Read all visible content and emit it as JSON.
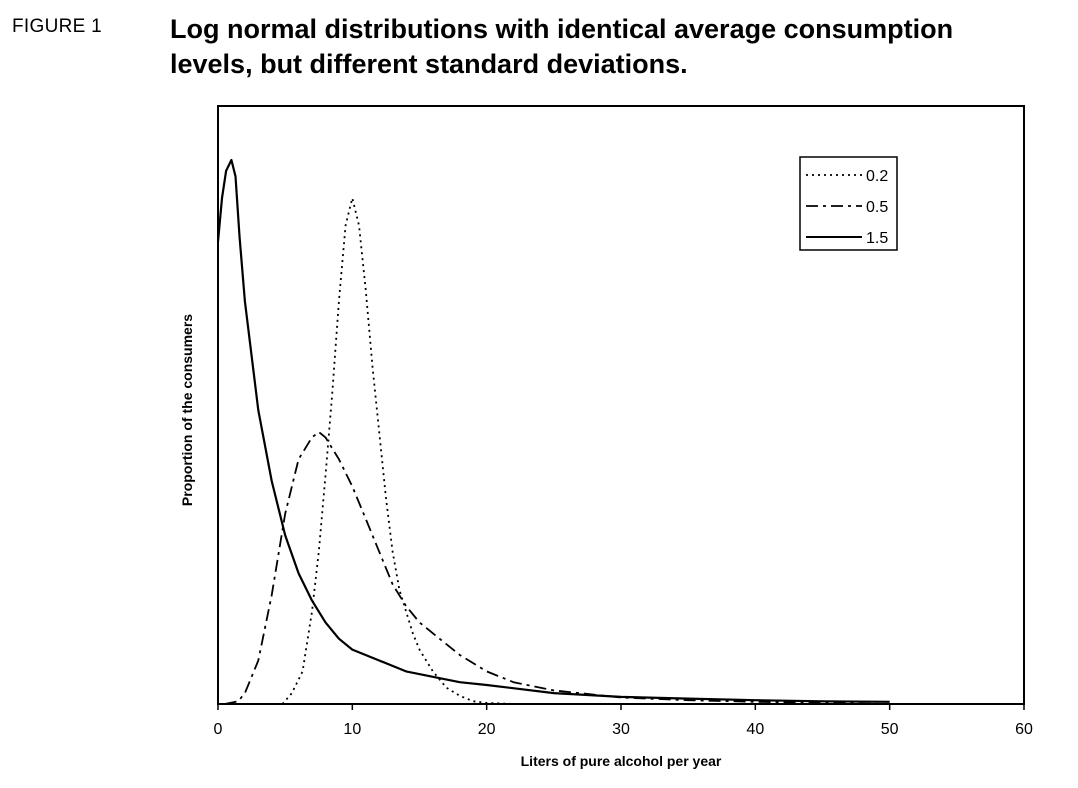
{
  "figure": {
    "label": "FIGURE 1",
    "title_line1": "Log normal distributions with identical average consumption",
    "title_line2": "levels, but different standard deviations."
  },
  "chart_data": {
    "type": "line",
    "xlabel": "Liters of pure alcohol per year",
    "ylabel": "Proportion of the consumers",
    "xlim": [
      0,
      60
    ],
    "ylim": [
      0,
      1
    ],
    "x_ticks": [
      "0",
      "10",
      "20",
      "30",
      "40",
      "50",
      "60"
    ],
    "legend_position": "top-right",
    "grid": false,
    "series": [
      {
        "name": "0.2",
        "style": "dotted",
        "points": [
          [
            4.8,
            0.0
          ],
          [
            5.5,
            0.02
          ],
          [
            6.3,
            0.06
          ],
          [
            7,
            0.17
          ],
          [
            7.5,
            0.28
          ],
          [
            8,
            0.42
          ],
          [
            8.5,
            0.57
          ],
          [
            9,
            0.74
          ],
          [
            9.5,
            0.88
          ],
          [
            10,
            0.93
          ],
          [
            10.5,
            0.88
          ],
          [
            11,
            0.76
          ],
          [
            11.5,
            0.62
          ],
          [
            12,
            0.5
          ],
          [
            12.5,
            0.38
          ],
          [
            13,
            0.28
          ],
          [
            13.5,
            0.21
          ],
          [
            14,
            0.17
          ],
          [
            14.5,
            0.13
          ],
          [
            15,
            0.1
          ],
          [
            16,
            0.06
          ],
          [
            17,
            0.03
          ],
          [
            18,
            0.015
          ],
          [
            19,
            0.005
          ],
          [
            20,
            0.002
          ],
          [
            22,
            0.0
          ]
        ]
      },
      {
        "name": "0.5",
        "style": "dashdot",
        "points": [
          [
            0.5,
            0.0
          ],
          [
            1.5,
            0.005
          ],
          [
            2,
            0.02
          ],
          [
            3,
            0.08
          ],
          [
            4,
            0.2
          ],
          [
            5,
            0.35
          ],
          [
            6,
            0.45
          ],
          [
            7,
            0.49
          ],
          [
            7.5,
            0.5
          ],
          [
            8,
            0.49
          ],
          [
            9,
            0.45
          ],
          [
            10,
            0.4
          ],
          [
            11,
            0.34
          ],
          [
            12,
            0.28
          ],
          [
            13,
            0.22
          ],
          [
            14,
            0.18
          ],
          [
            15,
            0.15
          ],
          [
            16,
            0.13
          ],
          [
            17,
            0.11
          ],
          [
            18,
            0.09
          ],
          [
            20,
            0.06
          ],
          [
            22,
            0.04
          ],
          [
            25,
            0.025
          ],
          [
            30,
            0.012
          ],
          [
            35,
            0.007
          ],
          [
            40,
            0.004
          ],
          [
            45,
            0.002
          ],
          [
            50,
            0.0
          ]
        ]
      },
      {
        "name": "1.5",
        "style": "solid",
        "points": [
          [
            0,
            0.85
          ],
          [
            0.3,
            0.93
          ],
          [
            0.6,
            0.98
          ],
          [
            1,
            1.0
          ],
          [
            1.3,
            0.97
          ],
          [
            1.6,
            0.86
          ],
          [
            2,
            0.74
          ],
          [
            3,
            0.54
          ],
          [
            4,
            0.41
          ],
          [
            5,
            0.31
          ],
          [
            6,
            0.24
          ],
          [
            7,
            0.19
          ],
          [
            8,
            0.15
          ],
          [
            9,
            0.12
          ],
          [
            10,
            0.1
          ],
          [
            12,
            0.08
          ],
          [
            14,
            0.06
          ],
          [
            16,
            0.05
          ],
          [
            18,
            0.04
          ],
          [
            20,
            0.035
          ],
          [
            25,
            0.02
          ],
          [
            30,
            0.013
          ],
          [
            35,
            0.01
          ],
          [
            40,
            0.007
          ],
          [
            45,
            0.005
          ],
          [
            50,
            0.004
          ]
        ]
      }
    ]
  }
}
